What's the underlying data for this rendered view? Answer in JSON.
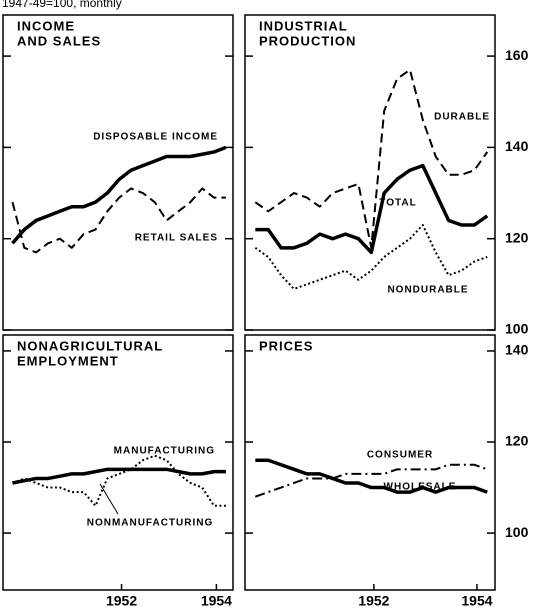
{
  "units": "1947-49=100, monthly",
  "chart_data": [
    {
      "type": "line",
      "title": [
        "INCOME",
        "AND SALES"
      ],
      "x": [
        1950.2,
        1950.45,
        1950.7,
        1950.95,
        1951.2,
        1951.45,
        1951.7,
        1951.95,
        1952.2,
        1952.45,
        1952.7,
        1952.95,
        1953.2,
        1953.45,
        1953.7,
        1953.95,
        1954.2,
        1954.45,
        1954.7
      ],
      "xlim": [
        1950,
        1954.85
      ],
      "ylim": [
        100,
        169
      ],
      "yticks": [
        100,
        120,
        140,
        160
      ],
      "series": [
        {
          "name": "DISPOSABLE INCOME",
          "color": "#000000",
          "dash": "solid",
          "values": [
            119,
            122,
            124,
            125,
            126,
            127,
            127,
            128,
            130,
            133,
            135,
            136,
            137,
            138,
            138,
            138,
            138.5,
            139,
            140
          ]
        },
        {
          "name": "RETAIL SALES",
          "color": "#000000",
          "dash": "dashed",
          "values": [
            128,
            118,
            117,
            119,
            120,
            118,
            121,
            122,
            126,
            129,
            131,
            130,
            128,
            124,
            126,
            128,
            131,
            129,
            129
          ]
        }
      ]
    },
    {
      "type": "line",
      "title": [
        "INDUSTRIAL",
        "PRODUCTION"
      ],
      "x": [
        1950.2,
        1950.45,
        1950.7,
        1950.95,
        1951.2,
        1951.45,
        1951.7,
        1951.95,
        1952.2,
        1952.45,
        1952.7,
        1952.95,
        1953.2,
        1953.45,
        1953.7,
        1953.95,
        1954.2,
        1954.45,
        1954.7
      ],
      "xlim": [
        1950,
        1954.85
      ],
      "ylim": [
        100,
        169
      ],
      "yticks": [
        100,
        120,
        140,
        160
      ],
      "series": [
        {
          "name": "DURABLE",
          "color": "#000000",
          "dash": "dashed",
          "values": [
            128,
            126,
            128,
            130,
            129,
            127,
            130,
            131,
            132,
            118,
            148,
            155,
            157,
            146,
            138,
            134,
            134,
            135,
            139
          ]
        },
        {
          "name": "TOTAL",
          "color": "#000000",
          "dash": "solid",
          "values": [
            122,
            122,
            118,
            118,
            119,
            121,
            120,
            121,
            120,
            117,
            130,
            133,
            135,
            136,
            130,
            124,
            123,
            123,
            125
          ]
        },
        {
          "name": "NONDURABLE",
          "color": "#000000",
          "dash": "dotted",
          "values": [
            118,
            116,
            112,
            109,
            110,
            111,
            112,
            113,
            111,
            113,
            116,
            118,
            120,
            123,
            117,
            112,
            113,
            115,
            116
          ]
        }
      ]
    },
    {
      "type": "line",
      "title": [
        "NONAGRICULTURAL",
        "EMPLOYMENT"
      ],
      "x": [
        1950.2,
        1950.45,
        1950.7,
        1950.95,
        1951.2,
        1951.45,
        1951.7,
        1951.95,
        1952.2,
        1952.45,
        1952.7,
        1952.95,
        1953.2,
        1953.45,
        1953.7,
        1953.95,
        1954.2,
        1954.45,
        1954.7
      ],
      "xlim": [
        1950,
        1954.85
      ],
      "ylim": [
        87.5,
        143.5
      ],
      "yticks": [
        100,
        120,
        140
      ],
      "xticks": [
        {
          "value": 1952.5,
          "label": "1952"
        },
        {
          "value": 1954.5,
          "label": "1954"
        }
      ],
      "series": [
        {
          "name": "MANUFACTURING",
          "color": "#000000",
          "dash": "dotted",
          "values": [
            111,
            112,
            111,
            110,
            110,
            109,
            109,
            106,
            112,
            113,
            114,
            116,
            117,
            116,
            113,
            111,
            110,
            106,
            106
          ]
        },
        {
          "name": "NONMANUFACTURING",
          "color": "#000000",
          "dash": "solid",
          "values": [
            111,
            111.5,
            112,
            112,
            112.5,
            113,
            113,
            113.5,
            114,
            114,
            114,
            114,
            114,
            114,
            113.5,
            113,
            113,
            113.5,
            113.5
          ]
        }
      ]
    },
    {
      "type": "line",
      "title": [
        "PRICES"
      ],
      "x": [
        1950.2,
        1950.45,
        1950.7,
        1950.95,
        1951.2,
        1951.45,
        1951.7,
        1951.95,
        1952.2,
        1952.45,
        1952.7,
        1952.95,
        1953.2,
        1953.45,
        1953.7,
        1953.95,
        1954.2,
        1954.45,
        1954.7
      ],
      "xlim": [
        1950,
        1954.85
      ],
      "ylim": [
        87.5,
        143.5
      ],
      "yticks": [
        100,
        120,
        140
      ],
      "xticks": [
        {
          "value": 1952.5,
          "label": "1952"
        },
        {
          "value": 1954.5,
          "label": "1954"
        }
      ],
      "series": [
        {
          "name": "CONSUMER",
          "color": "#000000",
          "dash": "dashdot",
          "values": [
            108,
            109,
            110,
            111,
            112,
            112,
            112,
            113,
            113,
            113,
            113,
            114,
            114,
            114,
            114,
            115,
            115,
            115,
            114
          ]
        },
        {
          "name": "WHOLESALE",
          "color": "#000000",
          "dash": "solid",
          "values": [
            116,
            116,
            115,
            114,
            113,
            113,
            112,
            111,
            111,
            110,
            110,
            109,
            109,
            110,
            109,
            110,
            110,
            110,
            109
          ]
        }
      ]
    }
  ]
}
